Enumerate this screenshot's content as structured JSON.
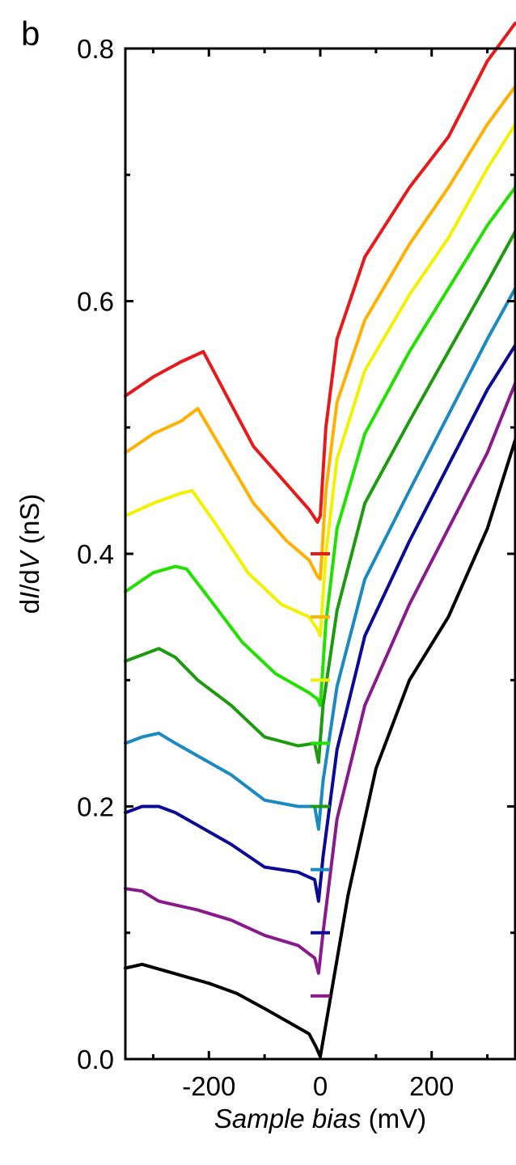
{
  "panel_label": "b",
  "chart_data": {
    "type": "line",
    "title": "",
    "xlabel_italic": "Sample bias",
    "xlabel_unit": " (mV)",
    "ylabel_pre": "d",
    "ylabel_italic_1": "I",
    "ylabel_mid": "/d",
    "ylabel_italic_2": "V",
    "ylabel_unit": " (nS)",
    "xlim": [
      -350,
      350
    ],
    "ylim": [
      0.0,
      0.8
    ],
    "xticks": [
      -200,
      0,
      200
    ],
    "xtick_labels": [
      "-200",
      "0",
      "200"
    ],
    "yticks": [
      0.0,
      0.2,
      0.4,
      0.6,
      0.8
    ],
    "ytick_labels": [
      "0.0",
      "0.2",
      "0.4",
      "0.6",
      "0.8"
    ],
    "grid": false,
    "legend": "none",
    "zero_markers": [
      {
        "x": 0,
        "y": 0.4,
        "color": "#e8191b"
      },
      {
        "x": 0,
        "y": 0.35,
        "color": "#ffb000"
      },
      {
        "x": 0,
        "y": 0.3,
        "color": "#f2f200"
      },
      {
        "x": 0,
        "y": 0.25,
        "color": "#22e000"
      },
      {
        "x": 0,
        "y": 0.2,
        "color": "#1e9a10"
      },
      {
        "x": 0,
        "y": 0.15,
        "color": "#1a8ac0"
      },
      {
        "x": 0,
        "y": 0.1,
        "color": "#0a0a96"
      },
      {
        "x": 0,
        "y": 0.05,
        "color": "#8a1a8c"
      }
    ],
    "series": [
      {
        "color": "#e8191b",
        "x": [
          -350,
          -300,
          -250,
          -210,
          -180,
          -120,
          -60,
          -20,
          -5,
          0,
          10,
          30,
          80,
          160,
          230,
          300,
          350
        ],
        "y": [
          0.525,
          0.54,
          0.552,
          0.56,
          0.535,
          0.485,
          0.455,
          0.435,
          0.425,
          0.43,
          0.5,
          0.57,
          0.635,
          0.69,
          0.73,
          0.79,
          0.82
        ]
      },
      {
        "color": "#ffb000",
        "x": [
          -350,
          -300,
          -250,
          -220,
          -180,
          -120,
          -60,
          -20,
          -5,
          0,
          10,
          30,
          80,
          160,
          230,
          300,
          350
        ],
        "y": [
          0.48,
          0.495,
          0.505,
          0.515,
          0.485,
          0.44,
          0.41,
          0.395,
          0.382,
          0.38,
          0.45,
          0.52,
          0.585,
          0.645,
          0.69,
          0.74,
          0.77
        ]
      },
      {
        "color": "#f2f200",
        "x": [
          -350,
          -300,
          -250,
          -230,
          -190,
          -130,
          -70,
          -20,
          -5,
          0,
          10,
          30,
          80,
          160,
          230,
          300,
          350
        ],
        "y": [
          0.43,
          0.44,
          0.448,
          0.45,
          0.425,
          0.385,
          0.36,
          0.35,
          0.34,
          0.335,
          0.4,
          0.475,
          0.545,
          0.605,
          0.65,
          0.705,
          0.74
        ]
      },
      {
        "color": "#22e000",
        "x": [
          -350,
          -300,
          -260,
          -240,
          -200,
          -140,
          -80,
          -20,
          -5,
          0,
          10,
          30,
          80,
          160,
          230,
          300,
          350
        ],
        "y": [
          0.37,
          0.385,
          0.39,
          0.388,
          0.365,
          0.33,
          0.305,
          0.29,
          0.285,
          0.28,
          0.345,
          0.42,
          0.495,
          0.56,
          0.61,
          0.66,
          0.69
        ]
      },
      {
        "color": "#1e9a10",
        "x": [
          -350,
          -320,
          -290,
          -260,
          -220,
          -160,
          -100,
          -40,
          -10,
          -3,
          5,
          30,
          80,
          160,
          230,
          300,
          350
        ],
        "y": [
          0.315,
          0.32,
          0.325,
          0.318,
          0.3,
          0.28,
          0.255,
          0.248,
          0.25,
          0.235,
          0.28,
          0.355,
          0.44,
          0.505,
          0.56,
          0.615,
          0.655
        ]
      },
      {
        "color": "#1a8ac0",
        "x": [
          -350,
          -320,
          -290,
          -260,
          -220,
          -160,
          -100,
          -40,
          -10,
          -3,
          5,
          30,
          80,
          160,
          230,
          300,
          350
        ],
        "y": [
          0.25,
          0.255,
          0.258,
          0.25,
          0.24,
          0.225,
          0.205,
          0.2,
          0.2,
          0.182,
          0.22,
          0.295,
          0.38,
          0.45,
          0.51,
          0.57,
          0.61
        ]
      },
      {
        "color": "#0a0a96",
        "x": [
          -350,
          -320,
          -290,
          -260,
          -220,
          -160,
          -100,
          -40,
          -10,
          -3,
          5,
          30,
          80,
          160,
          230,
          300,
          350
        ],
        "y": [
          0.195,
          0.2,
          0.2,
          0.195,
          0.185,
          0.17,
          0.152,
          0.148,
          0.142,
          0.125,
          0.16,
          0.245,
          0.335,
          0.41,
          0.47,
          0.53,
          0.565
        ]
      },
      {
        "color": "#8a1a8c",
        "x": [
          -350,
          -320,
          -290,
          -260,
          -220,
          -160,
          -100,
          -40,
          -10,
          -3,
          5,
          30,
          80,
          160,
          230,
          300,
          350
        ],
        "y": [
          0.135,
          0.133,
          0.125,
          0.122,
          0.118,
          0.11,
          0.098,
          0.09,
          0.08,
          0.068,
          0.1,
          0.19,
          0.28,
          0.36,
          0.42,
          0.48,
          0.535
        ]
      },
      {
        "color": "#000000",
        "x": [
          -350,
          -320,
          -280,
          -240,
          -200,
          -150,
          -100,
          -60,
          -20,
          -8,
          0,
          15,
          50,
          100,
          160,
          230,
          300,
          350
        ],
        "y": [
          0.072,
          0.075,
          0.07,
          0.065,
          0.06,
          0.052,
          0.04,
          0.03,
          0.02,
          0.01,
          0.002,
          0.04,
          0.13,
          0.23,
          0.3,
          0.35,
          0.42,
          0.49
        ]
      }
    ]
  }
}
